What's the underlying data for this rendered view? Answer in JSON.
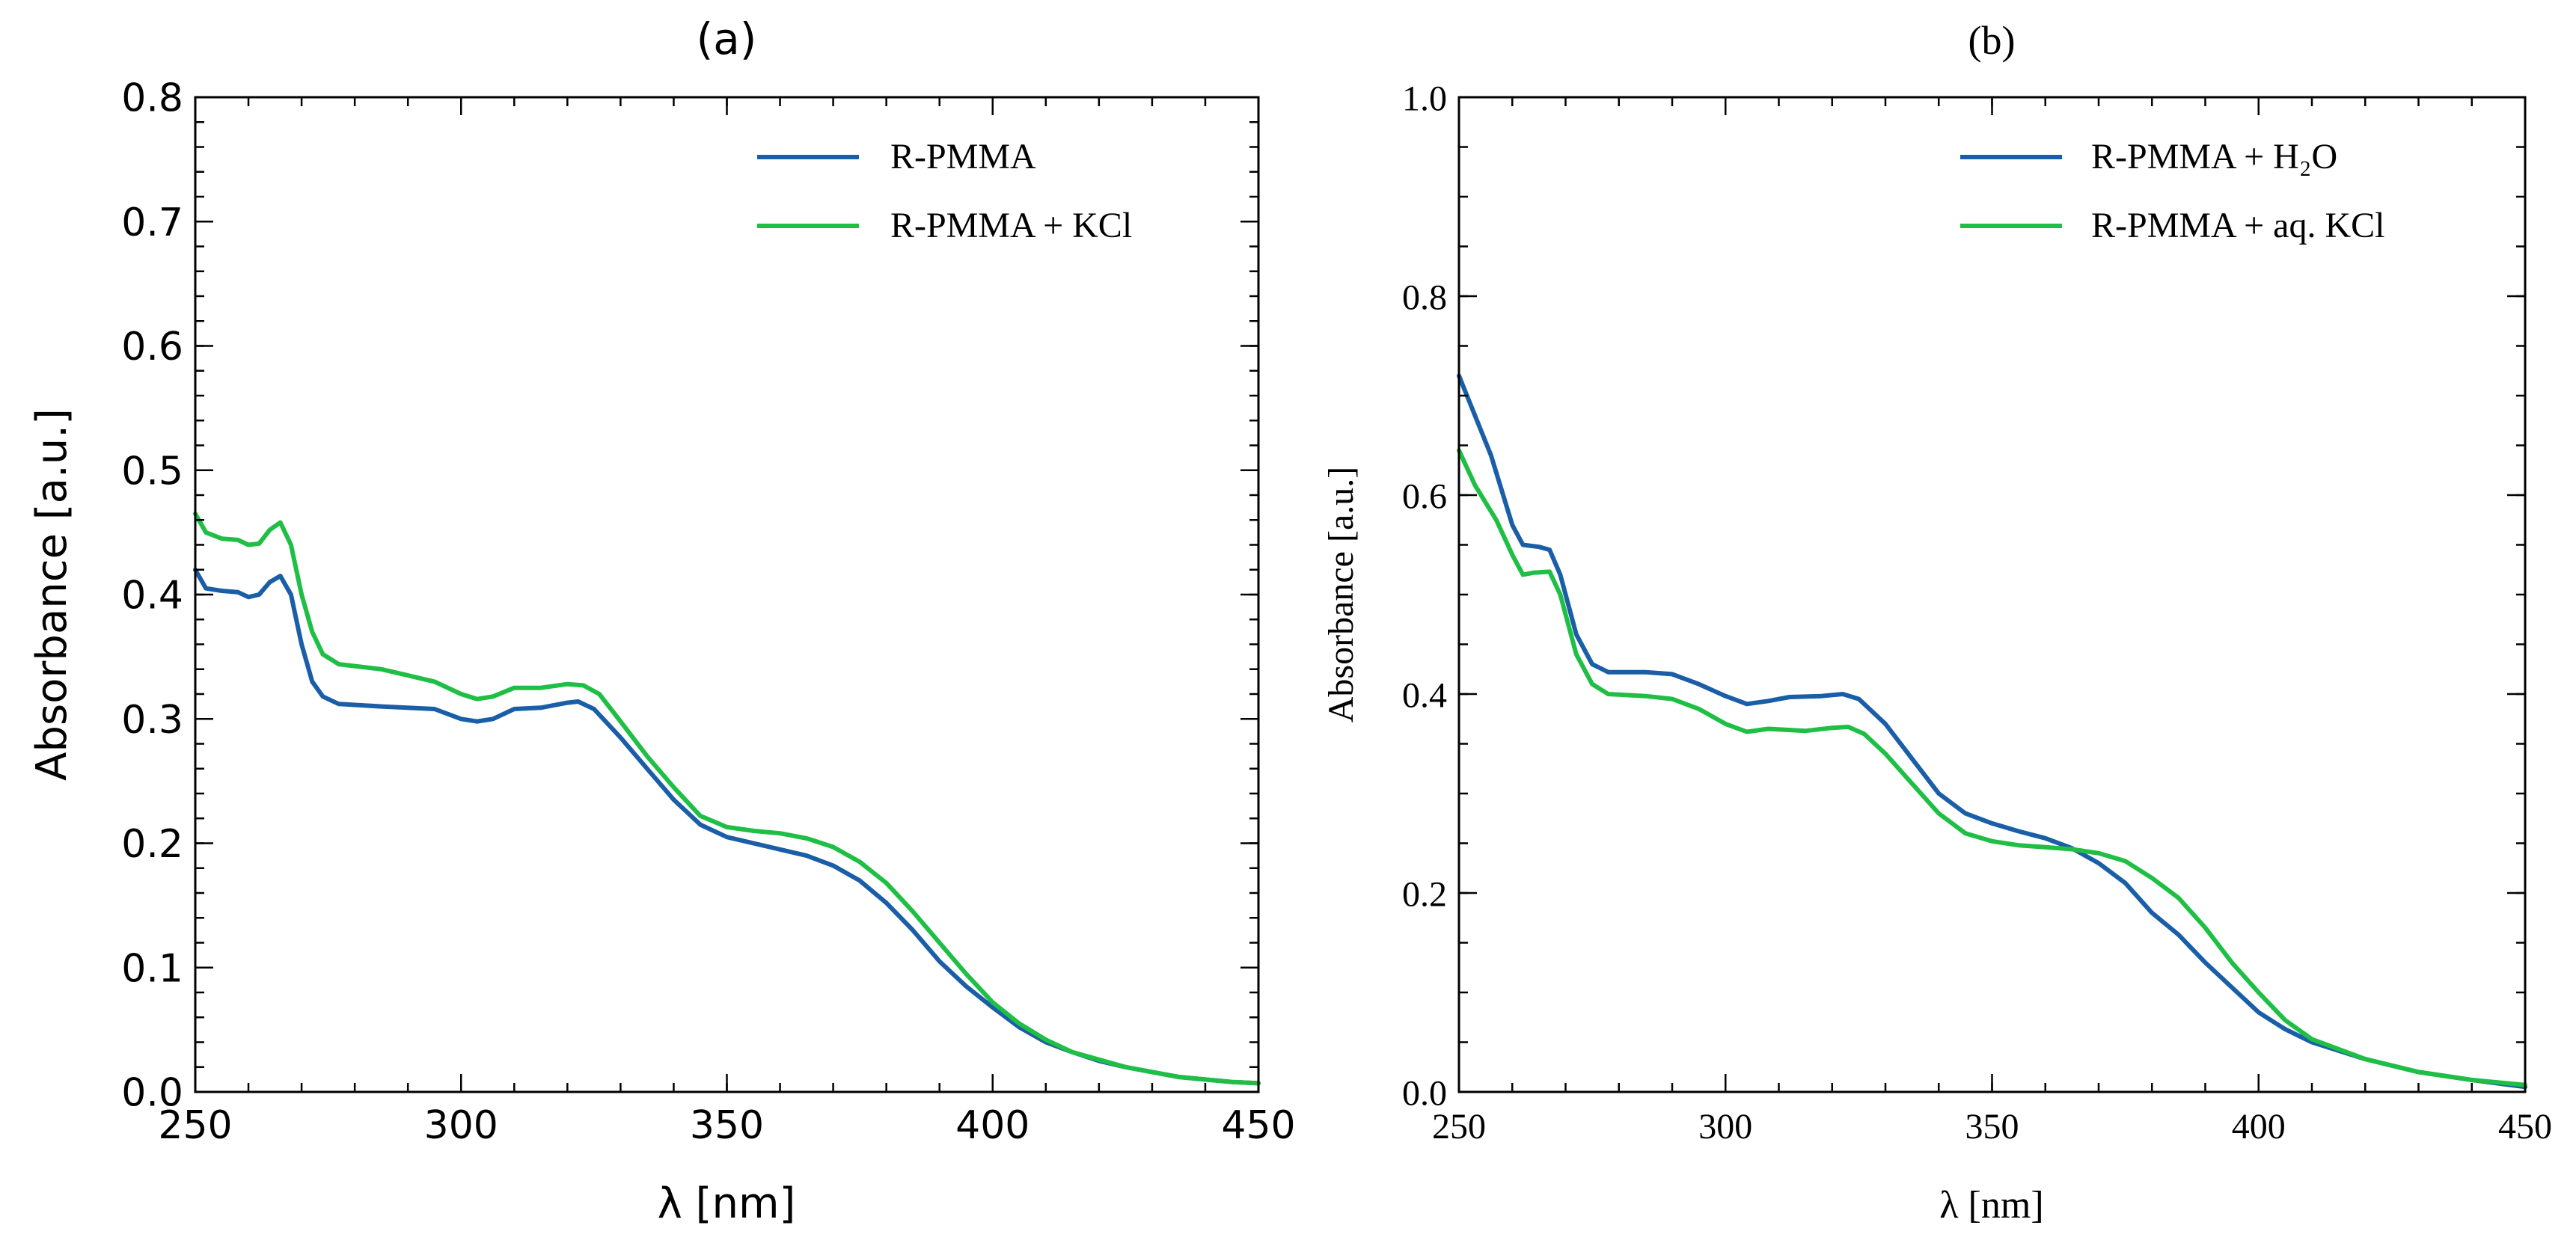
{
  "chart_data": [
    {
      "type": "line",
      "title": "(a)",
      "xlabel": "λ [nm]",
      "ylabel": "Absorbance [a.u.]",
      "xlim": [
        250,
        450
      ],
      "ylim": [
        0,
        0.8
      ],
      "xticks": [
        250,
        300,
        350,
        400,
        450
      ],
      "xtick_labels": [
        "250",
        "300",
        "350",
        "400",
        "450"
      ],
      "yticks": [
        0,
        0.1,
        0.2,
        0.3,
        0.4,
        0.5,
        0.6,
        0.7,
        0.8
      ],
      "ytick_labels": [
        "0.0",
        "0.1",
        "0.2",
        "0.3",
        "0.4",
        "0.5",
        "0.6",
        "0.7",
        "0.8"
      ],
      "x_minor_step": 10,
      "y_minor_step": 0.02,
      "grid": false,
      "legend_position": "top-right",
      "series": [
        {
          "name": "R-PMMA",
          "color": "#1a5ea8",
          "x": [
            250,
            252,
            255,
            258,
            260,
            262,
            264,
            266,
            268,
            270,
            272,
            274,
            277,
            285,
            295,
            300,
            303,
            306,
            310,
            315,
            320,
            322,
            325,
            330,
            335,
            340,
            345,
            350,
            355,
            360,
            365,
            370,
            375,
            380,
            385,
            390,
            395,
            400,
            405,
            410,
            415,
            420,
            425,
            430,
            435,
            440,
            445,
            450
          ],
          "y": [
            0.42,
            0.405,
            0.403,
            0.402,
            0.398,
            0.4,
            0.41,
            0.415,
            0.4,
            0.36,
            0.33,
            0.318,
            0.312,
            0.31,
            0.308,
            0.3,
            0.298,
            0.3,
            0.308,
            0.309,
            0.313,
            0.314,
            0.308,
            0.285,
            0.26,
            0.235,
            0.215,
            0.205,
            0.2,
            0.195,
            0.19,
            0.182,
            0.17,
            0.152,
            0.13,
            0.105,
            0.085,
            0.068,
            0.052,
            0.04,
            0.032,
            0.025,
            0.02,
            0.016,
            0.012,
            0.01,
            0.008,
            0.007
          ]
        },
        {
          "name": "R-PMMA + KCl",
          "color": "#1fbf45",
          "x": [
            250,
            252,
            255,
            258,
            260,
            262,
            264,
            266,
            268,
            270,
            272,
            274,
            277,
            285,
            290,
            295,
            300,
            303,
            306,
            310,
            315,
            320,
            323,
            326,
            330,
            335,
            340,
            345,
            350,
            355,
            360,
            365,
            370,
            375,
            380,
            385,
            390,
            395,
            400,
            405,
            410,
            415,
            420,
            425,
            430,
            435,
            440,
            445,
            450
          ],
          "y": [
            0.465,
            0.45,
            0.445,
            0.444,
            0.44,
            0.441,
            0.452,
            0.458,
            0.44,
            0.4,
            0.37,
            0.352,
            0.344,
            0.34,
            0.335,
            0.33,
            0.32,
            0.316,
            0.318,
            0.325,
            0.325,
            0.328,
            0.327,
            0.32,
            0.298,
            0.27,
            0.245,
            0.222,
            0.213,
            0.21,
            0.208,
            0.204,
            0.197,
            0.185,
            0.168,
            0.145,
            0.12,
            0.095,
            0.072,
            0.055,
            0.042,
            0.032,
            0.026,
            0.02,
            0.016,
            0.012,
            0.01,
            0.008,
            0.007
          ]
        }
      ]
    },
    {
      "type": "line",
      "title": "(b)",
      "xlabel": "λ [nm]",
      "ylabel": "Absorbance [a.u.]",
      "xlim": [
        250,
        450
      ],
      "ylim": [
        0,
        1.0
      ],
      "xticks": [
        250,
        300,
        350,
        400,
        450
      ],
      "xtick_labels": [
        "250",
        "300",
        "350",
        "400",
        "450"
      ],
      "yticks": [
        0,
        0.2,
        0.4,
        0.6,
        0.8,
        1.0
      ],
      "ytick_labels": [
        "0.0",
        "0.2",
        "0.4",
        "0.6",
        "0.8",
        "1.0"
      ],
      "x_minor_step": 10,
      "y_minor_step": 0.05,
      "grid": false,
      "legend_position": "top-right",
      "series": [
        {
          "name": "R-PMMA + H₂O",
          "color": "#1a5ea8",
          "x": [
            250,
            253,
            256,
            260,
            262,
            265,
            267,
            269,
            272,
            275,
            278,
            285,
            290,
            295,
            300,
            304,
            308,
            312,
            318,
            322,
            325,
            330,
            335,
            340,
            345,
            350,
            355,
            360,
            365,
            370,
            375,
            380,
            385,
            390,
            395,
            400,
            405,
            410,
            420,
            430,
            440,
            450
          ],
          "y": [
            0.72,
            0.68,
            0.64,
            0.57,
            0.55,
            0.548,
            0.545,
            0.52,
            0.46,
            0.43,
            0.422,
            0.422,
            0.42,
            0.41,
            0.398,
            0.39,
            0.393,
            0.397,
            0.398,
            0.4,
            0.395,
            0.37,
            0.335,
            0.3,
            0.28,
            0.27,
            0.262,
            0.255,
            0.245,
            0.23,
            0.21,
            0.18,
            0.158,
            0.13,
            0.105,
            0.08,
            0.063,
            0.05,
            0.033,
            0.02,
            0.012,
            0.005
          ]
        },
        {
          "name": "R-PMMA + aq. KCl",
          "color": "#1fbf45",
          "x": [
            250,
            253,
            257,
            260,
            262,
            264,
            267,
            269,
            272,
            275,
            278,
            285,
            290,
            295,
            300,
            304,
            308,
            315,
            320,
            323,
            326,
            330,
            335,
            340,
            345,
            350,
            355,
            360,
            365,
            370,
            375,
            380,
            385,
            390,
            395,
            400,
            405,
            410,
            420,
            430,
            440,
            450
          ],
          "y": [
            0.645,
            0.61,
            0.575,
            0.54,
            0.52,
            0.522,
            0.523,
            0.5,
            0.44,
            0.41,
            0.4,
            0.398,
            0.395,
            0.385,
            0.37,
            0.362,
            0.365,
            0.363,
            0.366,
            0.367,
            0.36,
            0.34,
            0.31,
            0.28,
            0.26,
            0.252,
            0.248,
            0.246,
            0.244,
            0.24,
            0.232,
            0.215,
            0.195,
            0.165,
            0.13,
            0.1,
            0.072,
            0.053,
            0.033,
            0.02,
            0.012,
            0.007
          ]
        }
      ]
    }
  ]
}
